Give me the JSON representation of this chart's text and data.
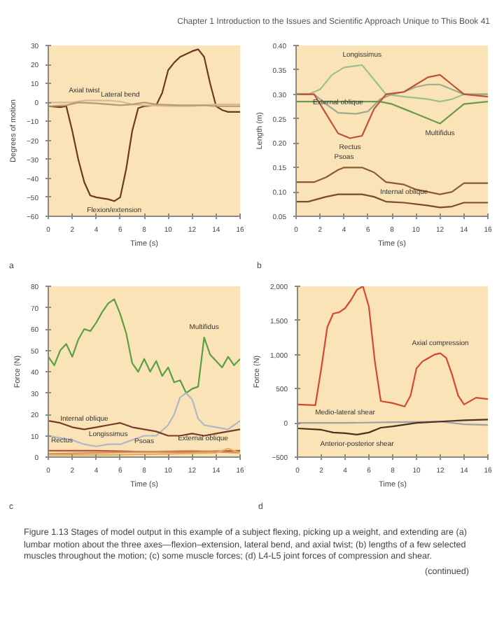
{
  "chart_data": [
    {
      "type": "line",
      "xlabel": "Time (s)",
      "ylabel": "Degrees of motion",
      "xlim": [
        0,
        16
      ],
      "xticks": [
        0,
        2,
        4,
        6,
        8,
        10,
        12,
        14,
        16
      ],
      "ylim": [
        -60,
        30
      ],
      "yticks": [
        -60,
        -50,
        -40,
        -30,
        -20,
        -10,
        0,
        10,
        20,
        30
      ],
      "grid": false,
      "annotations": [
        "Chapter 1   Introduction to the Issues and Scientific Approach Unique to This Book   41",
        "a",
        {
          "text": "Axial twist",
          "x": 3,
          "y": 1
        },
        {
          "text": "Lateral bend",
          "x": 6,
          "y": -1.5
        },
        {
          "text": "Flexion/extension",
          "x": 5.5,
          "y": -52
        }
      ],
      "series": [
        {
          "color": "#6b3a1e",
          "x": [
            0,
            1,
            1.5,
            2,
            2.5,
            3,
            3.5,
            4,
            5,
            5.5,
            6,
            6.5,
            7,
            7.5,
            8,
            9,
            9.5,
            10,
            10.5,
            11,
            12,
            12.5,
            13,
            13.5,
            14,
            14.5,
            15,
            16
          ],
          "values": [
            -2,
            -2.5,
            -2,
            -15,
            -30,
            -42,
            -49,
            -50,
            -51,
            -52,
            -50,
            -35,
            -15,
            -3,
            -2,
            -1.5,
            5,
            17,
            21,
            24,
            27,
            28,
            24,
            10,
            -2,
            -4,
            -5,
            -5
          ]
        },
        {
          "color": "#d8b895",
          "x": [
            0,
            2,
            3,
            5,
            6,
            7,
            8,
            10,
            12,
            14,
            16
          ],
          "values": [
            0,
            0,
            1,
            1,
            0.5,
            -1,
            -1.5,
            -2,
            -2,
            -1,
            -1
          ]
        },
        {
          "color": "#b89878",
          "x": [
            0,
            1.5,
            2.5,
            4,
            6,
            7,
            8,
            9,
            11,
            13,
            14,
            16
          ],
          "values": [
            -2,
            -1.5,
            0,
            -0.5,
            -1.5,
            -1,
            0,
            -1,
            -1.5,
            -1.5,
            -2,
            -2
          ]
        }
      ]
    },
    {
      "type": "line",
      "xlabel": "Time (s)",
      "ylabel": "Length (m)",
      "xlim": [
        0,
        16
      ],
      "xticks": [
        0,
        2,
        4,
        6,
        8,
        10,
        12,
        14,
        16
      ],
      "ylim": [
        0.05,
        0.4
      ],
      "yticks": [
        {
          "value": 0.05,
          "label": "0.05"
        },
        {
          "value": 0.1,
          "label": "0.10"
        },
        {
          "value": 0.15,
          "label": "0.15"
        },
        {
          "value": 0.2,
          "label": "0.20"
        },
        {
          "value": 0.25,
          "label": "0.25"
        },
        {
          "value": 0.3,
          "label": "0.30"
        },
        {
          "value": 0.35,
          "label": "0.35"
        },
        {
          "value": 0.4,
          "label": "0.40"
        }
      ],
      "grid": false,
      "annotations": [
        "b",
        {
          "text": "Longissimus",
          "x": 5.5,
          "y": 0.36
        },
        {
          "text": "External oblique",
          "x": 3.5,
          "y": 0.262
        },
        {
          "text": "Multifidus",
          "x": 12,
          "y": 0.24
        },
        {
          "text": "Rectus",
          "x": 4.5,
          "y": 0.21
        },
        {
          "text": "Psoas",
          "x": 4,
          "y": 0.15
        },
        {
          "text": "Internal oblique",
          "x": 9,
          "y": 0.078
        }
      ],
      "series": [
        {
          "color": "#9cc08a",
          "x": [
            0,
            1,
            2,
            3,
            4,
            5.5,
            6.5,
            7.5,
            9,
            11,
            12,
            13,
            14,
            16
          ],
          "values": [
            0.3,
            0.3,
            0.31,
            0.34,
            0.355,
            0.36,
            0.33,
            0.3,
            0.295,
            0.29,
            0.285,
            0.29,
            0.3,
            0.3
          ]
        },
        {
          "color": "#a0a890",
          "x": [
            0,
            1.5,
            2.5,
            3.5,
            5,
            6,
            7,
            8,
            9,
            10,
            11,
            12,
            13,
            14,
            16
          ],
          "values": [
            0.3,
            0.3,
            0.28,
            0.262,
            0.26,
            0.265,
            0.29,
            0.3,
            0.305,
            0.315,
            0.32,
            0.32,
            0.31,
            0.3,
            0.3
          ]
        },
        {
          "color": "#6a9a50",
          "x": [
            0,
            7,
            8,
            9,
            10,
            11,
            12,
            13,
            14,
            16
          ],
          "values": [
            0.285,
            0.285,
            0.28,
            0.27,
            0.26,
            0.25,
            0.24,
            0.26,
            0.28,
            0.285
          ]
        },
        {
          "color": "#c0503a",
          "x": [
            0,
            1.5,
            2.5,
            3.5,
            4.5,
            5.5,
            6.5,
            7.5,
            9,
            10,
            11,
            12,
            13,
            14,
            16
          ],
          "values": [
            0.3,
            0.3,
            0.26,
            0.22,
            0.21,
            0.215,
            0.27,
            0.3,
            0.305,
            0.32,
            0.335,
            0.34,
            0.32,
            0.3,
            0.295
          ]
        },
        {
          "color": "#8a5a3a",
          "x": [
            0,
            1.5,
            2.5,
            3.5,
            4,
            5.5,
            6.5,
            7.5,
            9,
            10,
            11,
            12,
            13,
            14,
            16
          ],
          "values": [
            0.12,
            0.12,
            0.13,
            0.145,
            0.15,
            0.15,
            0.14,
            0.12,
            0.115,
            0.105,
            0.1,
            0.095,
            0.1,
            0.118,
            0.118
          ]
        },
        {
          "color": "#7a4a30",
          "x": [
            0,
            1,
            2.5,
            3.5,
            5.5,
            6.5,
            7.5,
            9,
            11,
            12,
            13,
            14,
            16
          ],
          "values": [
            0.08,
            0.08,
            0.09,
            0.095,
            0.095,
            0.09,
            0.08,
            0.078,
            0.072,
            0.068,
            0.07,
            0.078,
            0.078
          ]
        }
      ]
    },
    {
      "type": "line",
      "xlabel": "Time (s)",
      "ylabel": "Force (N)",
      "xlim": [
        0,
        16
      ],
      "xticks": [
        0,
        2,
        4,
        6,
        8,
        10,
        12,
        14,
        16
      ],
      "ylim": [
        0,
        80
      ],
      "yticks": [
        0,
        10,
        20,
        30,
        40,
        50,
        60,
        70,
        80
      ],
      "grid": false,
      "annotations": [
        "c",
        {
          "text": "Multifidus",
          "x": 13,
          "y": 56
        },
        {
          "text": "Internal oblique",
          "x": 3,
          "y": 13
        },
        {
          "text": "Longissimus",
          "x": 5,
          "y": 6
        },
        {
          "text": "Rectus",
          "x": 0,
          "y": 3
        },
        {
          "text": "Psoas",
          "x": 8,
          "y": 2.5
        },
        {
          "text": "External oblique",
          "x": 15,
          "y": 4
        }
      ],
      "series": [
        {
          "color": "#5aa040",
          "x": [
            0,
            0.5,
            1,
            1.5,
            2,
            2.5,
            3,
            3.5,
            4,
            4.5,
            5,
            5.5,
            6,
            6.5,
            7,
            7.5,
            8,
            8.5,
            9,
            9.5,
            10,
            10.5,
            11,
            11.5,
            12,
            12.5,
            13,
            13.5,
            14,
            14.5,
            15,
            15.5,
            16
          ],
          "values": [
            47,
            43,
            50,
            53,
            47,
            55,
            60,
            59,
            63,
            68,
            72,
            74,
            67,
            58,
            44,
            40,
            46,
            40,
            45,
            38,
            42,
            35,
            36,
            30,
            32,
            33,
            56,
            48,
            45,
            42,
            47,
            43,
            46
          ]
        },
        {
          "color": "#b0b8c8",
          "x": [
            0,
            1,
            2,
            3,
            4,
            5,
            6,
            7,
            8,
            9,
            10,
            10.5,
            11,
            11.5,
            12,
            12.5,
            13,
            14,
            15,
            16
          ],
          "values": [
            10,
            9,
            8,
            6,
            5,
            6,
            6,
            8,
            10,
            10,
            15,
            20,
            28,
            30,
            27,
            18,
            15,
            14,
            13,
            17
          ]
        },
        {
          "color": "#7a3a2a",
          "x": [
            0,
            1,
            2,
            3,
            4,
            5,
            6,
            7,
            8,
            9,
            10,
            11,
            12,
            13,
            14,
            15,
            16
          ],
          "values": [
            17,
            16,
            14,
            13,
            14,
            15,
            16,
            14,
            13,
            12,
            10,
            10,
            11,
            10,
            11,
            12,
            13
          ]
        },
        {
          "color": "#c05030",
          "x": [
            0,
            4,
            8,
            12,
            16
          ],
          "values": [
            3,
            3,
            2.5,
            2.5,
            3
          ]
        },
        {
          "color": "#d09060",
          "x": [
            0,
            4,
            8,
            12,
            16
          ],
          "values": [
            1.5,
            2,
            2.5,
            3,
            2
          ]
        },
        {
          "color": "#e0b060",
          "x": [
            0,
            5,
            10,
            14,
            15,
            16
          ],
          "values": [
            1,
            1,
            1.5,
            2,
            4,
            2
          ]
        }
      ]
    },
    {
      "type": "line",
      "xlabel": "Time (s)",
      "ylabel": "Force (N)",
      "xlim": [
        0,
        16
      ],
      "xticks": [
        0,
        2,
        4,
        6,
        8,
        10,
        12,
        14,
        16
      ],
      "ylim": [
        -500,
        2000
      ],
      "yticks": [
        {
          "value": -500,
          "label": "−500"
        },
        0,
        500,
        {
          "value": 1000,
          "label": "1,000"
        },
        {
          "value": 1500,
          "label": "1,500"
        },
        {
          "value": 2000,
          "label": "2,000"
        }
      ],
      "grid": false,
      "annotations": [
        "d",
        {
          "text": "Axial compression",
          "x": 12,
          "y": 1020
        },
        {
          "text": "Medio-lateral shear",
          "x": 4,
          "y": 0
        },
        {
          "text": "Anterior-posterior shear",
          "x": 5,
          "y": -170
        },
        "Figure 1.13  Stages of model output in this example of a subject flexing, picking up a weight, and extending are (a) lumbar motion about the three axes—flexion–extension, lateral bend, and axial twist; (b) lengths of a few selected muscles throughout the motion; (c) some muscle forces; (d) L4-L5 joint forces of compression and shear.",
        "(continued)"
      ],
      "series": [
        {
          "color": "#d04a30",
          "x": [
            0,
            1.5,
            2,
            2.5,
            3,
            3.5,
            4,
            4.5,
            5,
            5.5,
            6,
            6.5,
            7,
            8,
            9,
            9.5,
            10,
            10.5,
            11,
            11.5,
            12,
            12.5,
            13,
            13.5,
            14,
            15,
            16
          ],
          "values": [
            270,
            260,
            800,
            1400,
            1600,
            1620,
            1680,
            1800,
            1950,
            2000,
            1700,
            900,
            320,
            290,
            240,
            400,
            800,
            900,
            950,
            1000,
            1020,
            950,
            700,
            400,
            270,
            370,
            350
          ]
        },
        {
          "color": "#a0a0a0",
          "x": [
            0,
            4,
            8,
            12,
            14,
            16
          ],
          "values": [
            0,
            0,
            10,
            20,
            -20,
            -30
          ]
        },
        {
          "color": "#4a3020",
          "x": [
            0,
            2,
            3,
            4,
            5,
            6,
            7,
            8,
            10,
            12,
            14,
            16
          ],
          "values": [
            -80,
            -100,
            -140,
            -150,
            -170,
            -140,
            -70,
            -50,
            0,
            20,
            40,
            50
          ]
        }
      ]
    }
  ]
}
